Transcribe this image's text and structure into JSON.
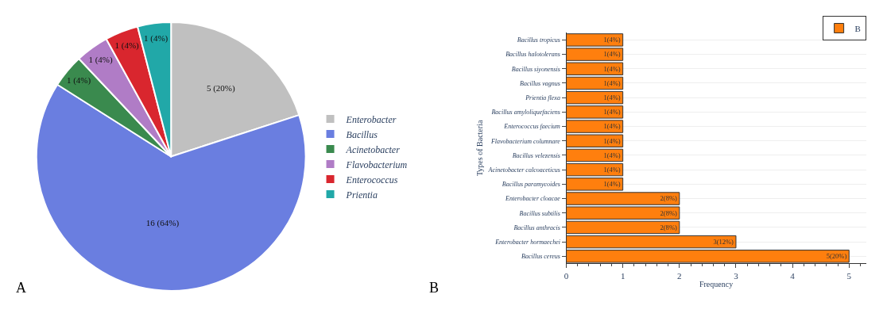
{
  "chart_data": [
    {
      "type": "pie",
      "categories": [
        "Enterobacter",
        "Bacillus",
        "Acinetobacter",
        "Flavobacterium",
        "Enterococcus",
        "Prientia"
      ],
      "values": [
        5,
        16,
        1,
        1,
        1,
        1
      ],
      "colors": [
        "#c0c0c0",
        "#6a7ee0",
        "#3a8a4e",
        "#b07cc6",
        "#d9262e",
        "#21a8a8"
      ],
      "value_labels": [
        "5 (20%)",
        "16 (64%)",
        "1 (4%)",
        "1 (4%)",
        "1 (4%)",
        "1 (4%)"
      ],
      "legend": "right",
      "annotations": [
        "A"
      ]
    },
    {
      "type": "bar",
      "orientation": "horizontal",
      "categories": [
        "Bacillus tropicus",
        "Bacillus halotolerans",
        "Bacillus siyonensis",
        "Bacillus vagnus",
        "Prientia flexa",
        "Bacillus amyloliquefaciens",
        "Enterococcus faecium",
        "Flavobacterium columnare",
        "Bacillus velezensis",
        "Acinetobacter calcoaceticus",
        "Bacillus paramycoides",
        "Enterobacter cloacae",
        "Bacillus subtilis",
        "Bacillus anthracis",
        "Enterobacter hormaechei",
        "Bacillus cereus"
      ],
      "series": [
        {
          "name": "B",
          "color": "#ff7f0e",
          "values": [
            1,
            1,
            1,
            1,
            1,
            1,
            1,
            1,
            1,
            1,
            1,
            2,
            2,
            2,
            3,
            5
          ],
          "value_labels": [
            "1(4%)",
            "1(4%)",
            "1(4%)",
            "1(4%)",
            "1(4%)",
            "1(4%)",
            "1(4%)",
            "1(4%)",
            "1(4%)",
            "1(4%)",
            "1(4%)",
            "2(8%)",
            "2(8%)",
            "2(8%)",
            "3(12%)",
            "5(20%)"
          ]
        }
      ],
      "xlim": [
        0,
        5.3
      ],
      "xticks": [
        0,
        1,
        2,
        3,
        4,
        5
      ],
      "xlabel": "Frequency",
      "ylabel": "Types of Bacteria",
      "grid": "y",
      "legend": "top right",
      "annotations": [
        "B"
      ]
    }
  ]
}
